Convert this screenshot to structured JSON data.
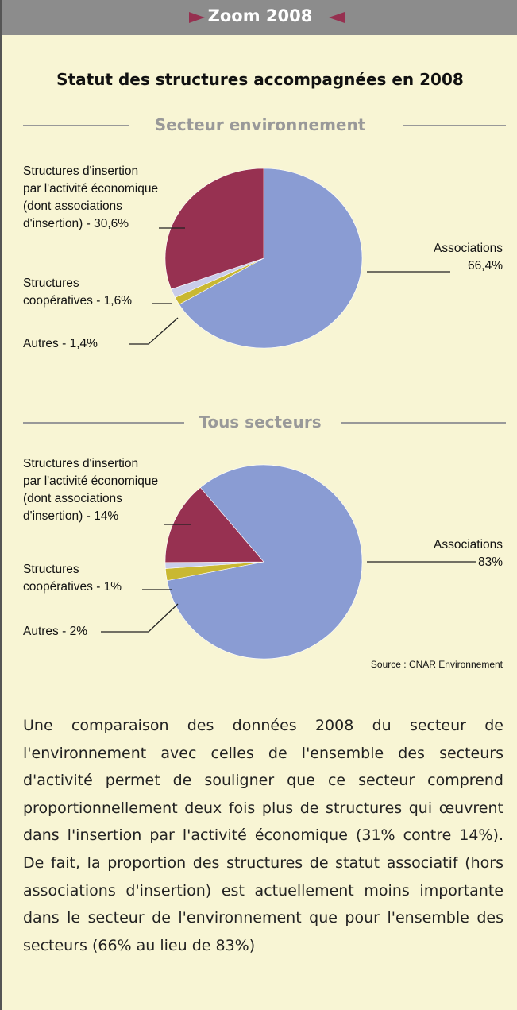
{
  "header": "Zoom 2008",
  "title": "Statut des structures accompagnées en 2008",
  "chart_data": [
    {
      "type": "pie",
      "title": "Secteur environnement",
      "categories": [
        "Associations\n66,4%",
        "Autres - 1,4%",
        "Structures\ncoopératives - 1,6%",
        "Structures d'insertion\npar l'activité économique\n(dont associations\nd'insertion) - 30,6%"
      ],
      "values": [
        66.4,
        1.4,
        1.6,
        30.6
      ],
      "colors": [
        "#8a9cd3",
        "#c9b832",
        "#c9cdea",
        "#973151"
      ]
    },
    {
      "type": "pie",
      "title": "Tous secteurs",
      "categories": [
        "Associations\n83%",
        "Autres - 2%",
        "Structures\ncoopératives - 1%",
        "Structures d'insertion\npar l'activité économique\n(dont associations\nd'insertion) - 14%"
      ],
      "values": [
        83,
        2,
        1,
        14
      ],
      "colors": [
        "#8a9cd3",
        "#c9b832",
        "#c9cdea",
        "#973151"
      ]
    }
  ],
  "source": "Source : CNAR  Environnement",
  "paragraph": "Une comparaison des données 2008 du secteur de l'environnement avec celles de l'ensemble des secteurs d'activité permet de souligner que ce secteur comprend proportionnellement deux fois plus de structures qui œuvrent dans l'insertion par l'activité économique (31% contre 14%). De fait, la proportion des structures de statut associatif (hors associations d'insertion) est actuellement moins importante dans le secteur de l'environnement que pour l'ensemble des secteurs (66% au lieu de 83%)"
}
